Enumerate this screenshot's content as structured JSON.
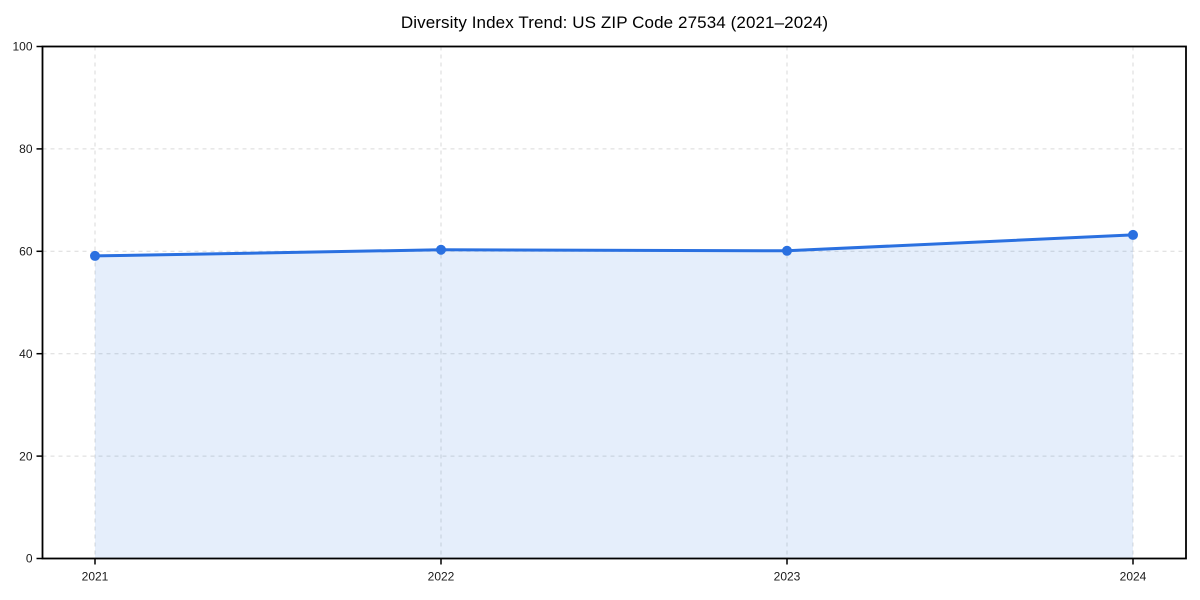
{
  "page": {
    "background": "#ffffff"
  },
  "chart_data": {
    "type": "area",
    "title": "Diversity Index Trend: US ZIP Code 27534 (2021–2024)",
    "x": [
      "2021",
      "2022",
      "2023",
      "2024"
    ],
    "series": [
      {
        "name": "Diversity Index",
        "values": [
          59.1,
          60.3,
          60.1,
          63.2
        ]
      }
    ],
    "xlabel": "",
    "ylabel": "",
    "ylim": [
      0,
      100
    ],
    "yticks": [
      0,
      20,
      40,
      60,
      80,
      100
    ],
    "grid": "dashed-both-axes",
    "legend": "none",
    "frame": "full-box",
    "marker": "circle",
    "colors": {
      "line": "#2a70e0",
      "marker": "#2a70e0",
      "fill": "rgba(42, 112, 224, 0.12)",
      "grid": "#dadada",
      "spine": "#000000",
      "tick_label": "#1a1a1a",
      "title": "#000000"
    }
  }
}
